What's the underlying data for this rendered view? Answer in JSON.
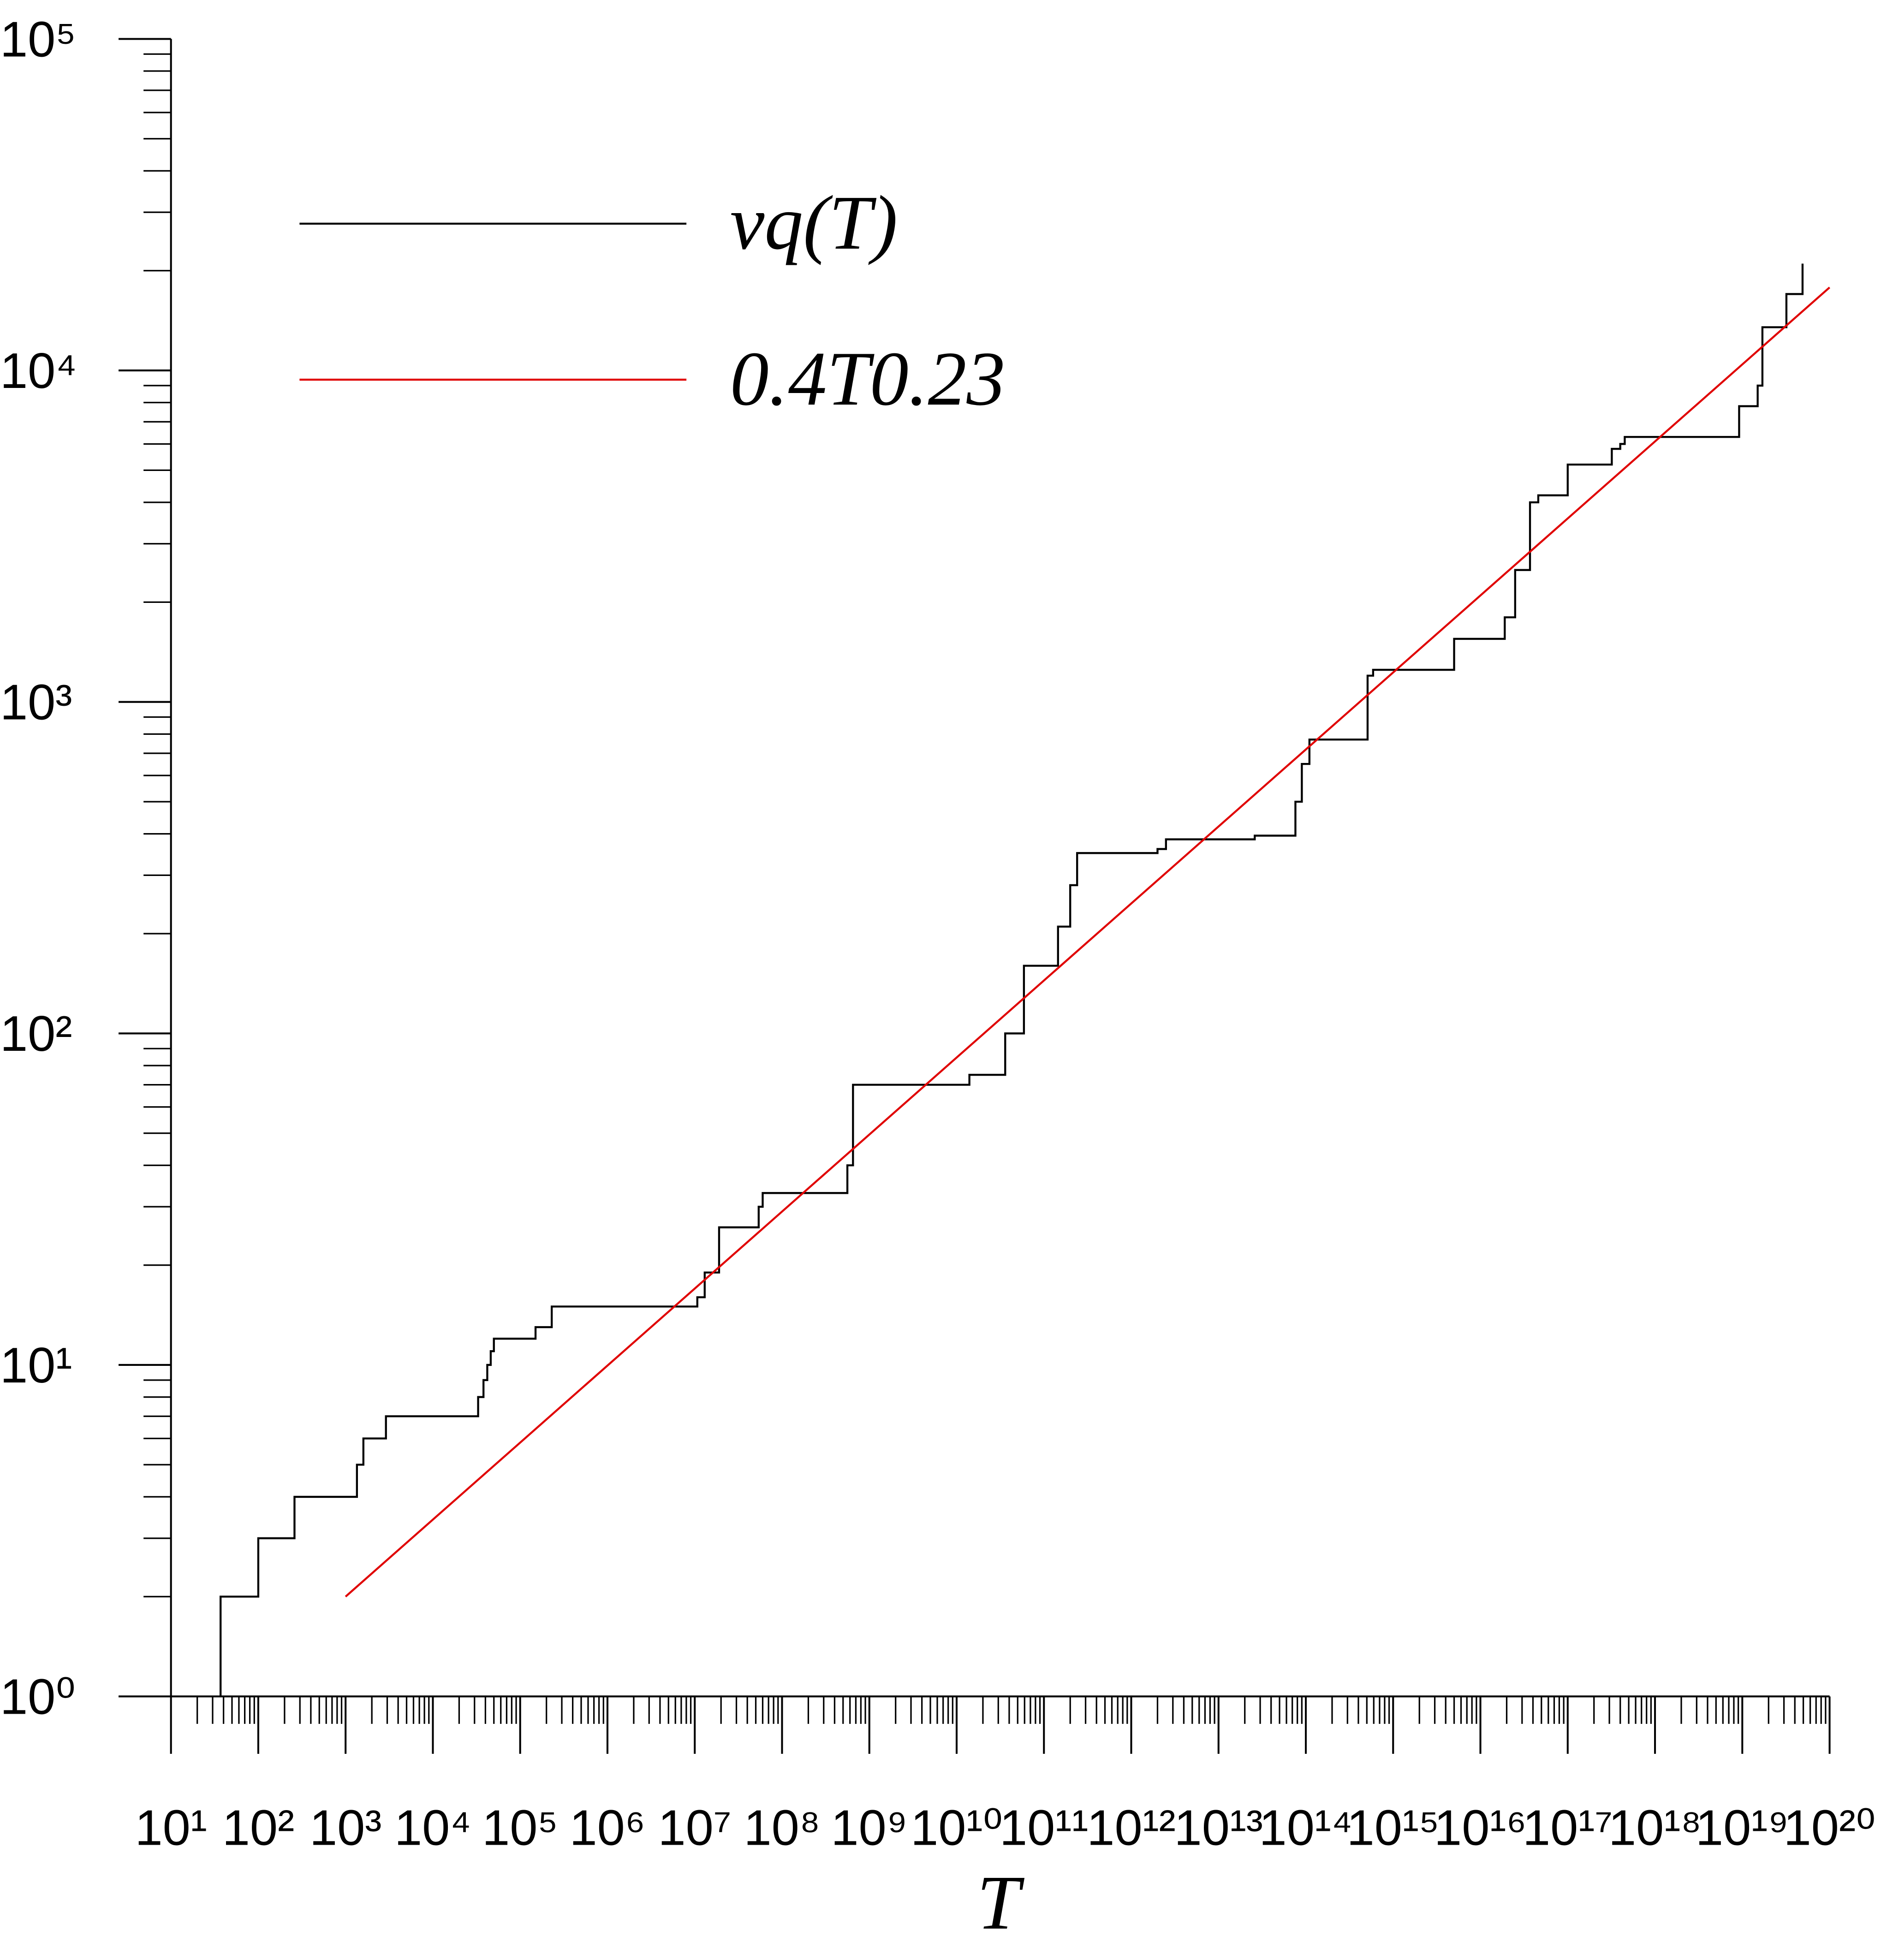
{
  "chart_data": {
    "type": "line",
    "x_label": "T",
    "log_x": true,
    "log_y": true,
    "xlim": [
      10,
      1e+20
    ],
    "ylim": [
      1,
      100000
    ],
    "minor_ticks": true,
    "legend": "upper left",
    "xticks": [
      {
        "value": 10.0,
        "label": "10¹"
      },
      {
        "value": 100.0,
        "label": "10²"
      },
      {
        "value": 1000.0,
        "label": "10³"
      },
      {
        "value": 10000.0,
        "label": "10⁴"
      },
      {
        "value": 100000.0,
        "label": "10⁵"
      },
      {
        "value": 1000000.0,
        "label": "10⁶"
      },
      {
        "value": 10000000.0,
        "label": "10⁷"
      },
      {
        "value": 100000000.0,
        "label": "10⁸"
      },
      {
        "value": 1000000000.0,
        "label": "10⁹"
      },
      {
        "value": 10000000000.0,
        "label": "10¹⁰"
      },
      {
        "value": 100000000000.0,
        "label": "10¹¹"
      },
      {
        "value": 1000000000000.0,
        "label": "10¹²"
      },
      {
        "value": 10000000000000.0,
        "label": "10¹³"
      },
      {
        "value": 100000000000000.0,
        "label": "10¹⁴"
      },
      {
        "value": 1000000000000000.0,
        "label": "10¹⁵"
      },
      {
        "value": 1e+16,
        "label": "10¹⁶"
      },
      {
        "value": 1e+17,
        "label": "10¹⁷"
      },
      {
        "value": 1e+18,
        "label": "10¹⁸"
      },
      {
        "value": 1e+19,
        "label": "10¹⁹"
      },
      {
        "value": 1e+20,
        "label": "10²⁰"
      }
    ],
    "yticks": [
      {
        "value": 1,
        "label": "10⁰"
      },
      {
        "value": 10,
        "label": "10¹"
      },
      {
        "value": 100,
        "label": "10²"
      },
      {
        "value": 1000,
        "label": "10³"
      },
      {
        "value": 10000,
        "label": "10⁴"
      },
      {
        "value": 100000,
        "label": "10⁵"
      }
    ],
    "series": [
      {
        "name": "vq(T)",
        "color": "#000000",
        "x": [
          37,
          37,
          100,
          100,
          260,
          260,
          1350,
          1350,
          1600,
          1600,
          2900,
          2900,
          33000,
          33000,
          38000,
          38000,
          42000,
          42000,
          46000,
          46000,
          50000,
          50000,
          150000,
          150000,
          230000,
          230000,
          10700000.0,
          10700000.0,
          13000000.0,
          13000000.0,
          19000000.0,
          19000000.0,
          54000000.0,
          54000000.0,
          60000000.0,
          60000000.0,
          560000000.0,
          560000000.0,
          650000000.0,
          650000000.0,
          14000000000.0,
          14000000000.0,
          36000000000.0,
          36000000000.0,
          59000000000.0,
          59000000000.0,
          145000000000.0,
          145000000000.0,
          200000000000.0,
          200000000000.0,
          240000000000.0,
          240000000000.0,
          2000000000000.0,
          2000000000000.0,
          2500000000000.0,
          2500000000000.0,
          26000000000000.0,
          26000000000000.0,
          76000000000000.0,
          76000000000000.0,
          90000000000000.0,
          90000000000000.0,
          110000000000000.0,
          110000000000000.0,
          510000000000000.0,
          510000000000000.0,
          590000000000000.0,
          590000000000000.0,
          5000000000000000.0,
          5000000000000000.0,
          1.9e+16,
          1.9e+16,
          2.5e+16,
          2.5e+16,
          3.7e+16,
          3.7e+16,
          4.6e+16,
          4.6e+16,
          1e+17,
          1e+17,
          3.2e+17,
          3.2e+17,
          4e+17,
          4e+17,
          4.5e+17,
          4.5e+17,
          9.2e+18,
          9.2e+18,
          1.5e+19,
          1.5e+19,
          1.7e+19,
          1.7e+19,
          3.2e+19,
          3.2e+19,
          4.9e+19,
          4.9e+19
        ],
        "values": [
          1,
          2,
          2,
          3,
          3,
          4,
          4,
          5,
          5,
          6,
          6,
          7,
          7,
          8,
          8,
          9,
          9,
          10,
          10,
          11,
          11,
          12,
          12,
          13,
          13,
          15,
          15,
          16,
          16,
          19,
          19,
          26,
          26,
          30,
          30,
          33,
          33,
          40,
          40,
          70,
          70,
          75,
          75,
          100,
          100,
          160,
          160,
          210,
          210,
          280,
          280,
          350,
          350,
          360,
          360,
          385,
          385,
          395,
          395,
          500,
          500,
          650,
          650,
          770,
          770,
          1200,
          1200,
          1250,
          1250,
          1550,
          1550,
          1800,
          1800,
          2500,
          2500,
          4000,
          4000,
          4200,
          4200,
          5200,
          5200,
          5800,
          5800,
          6000,
          6000,
          6300,
          6300,
          7800,
          7800,
          9000,
          9000,
          13500,
          13500,
          17000,
          17000,
          21000
        ]
      },
      {
        "name": "0.4T0.23",
        "color": "#e00000",
        "x": [
          1000,
          1e+20
        ],
        "values": [
          2,
          17800
        ]
      }
    ]
  }
}
